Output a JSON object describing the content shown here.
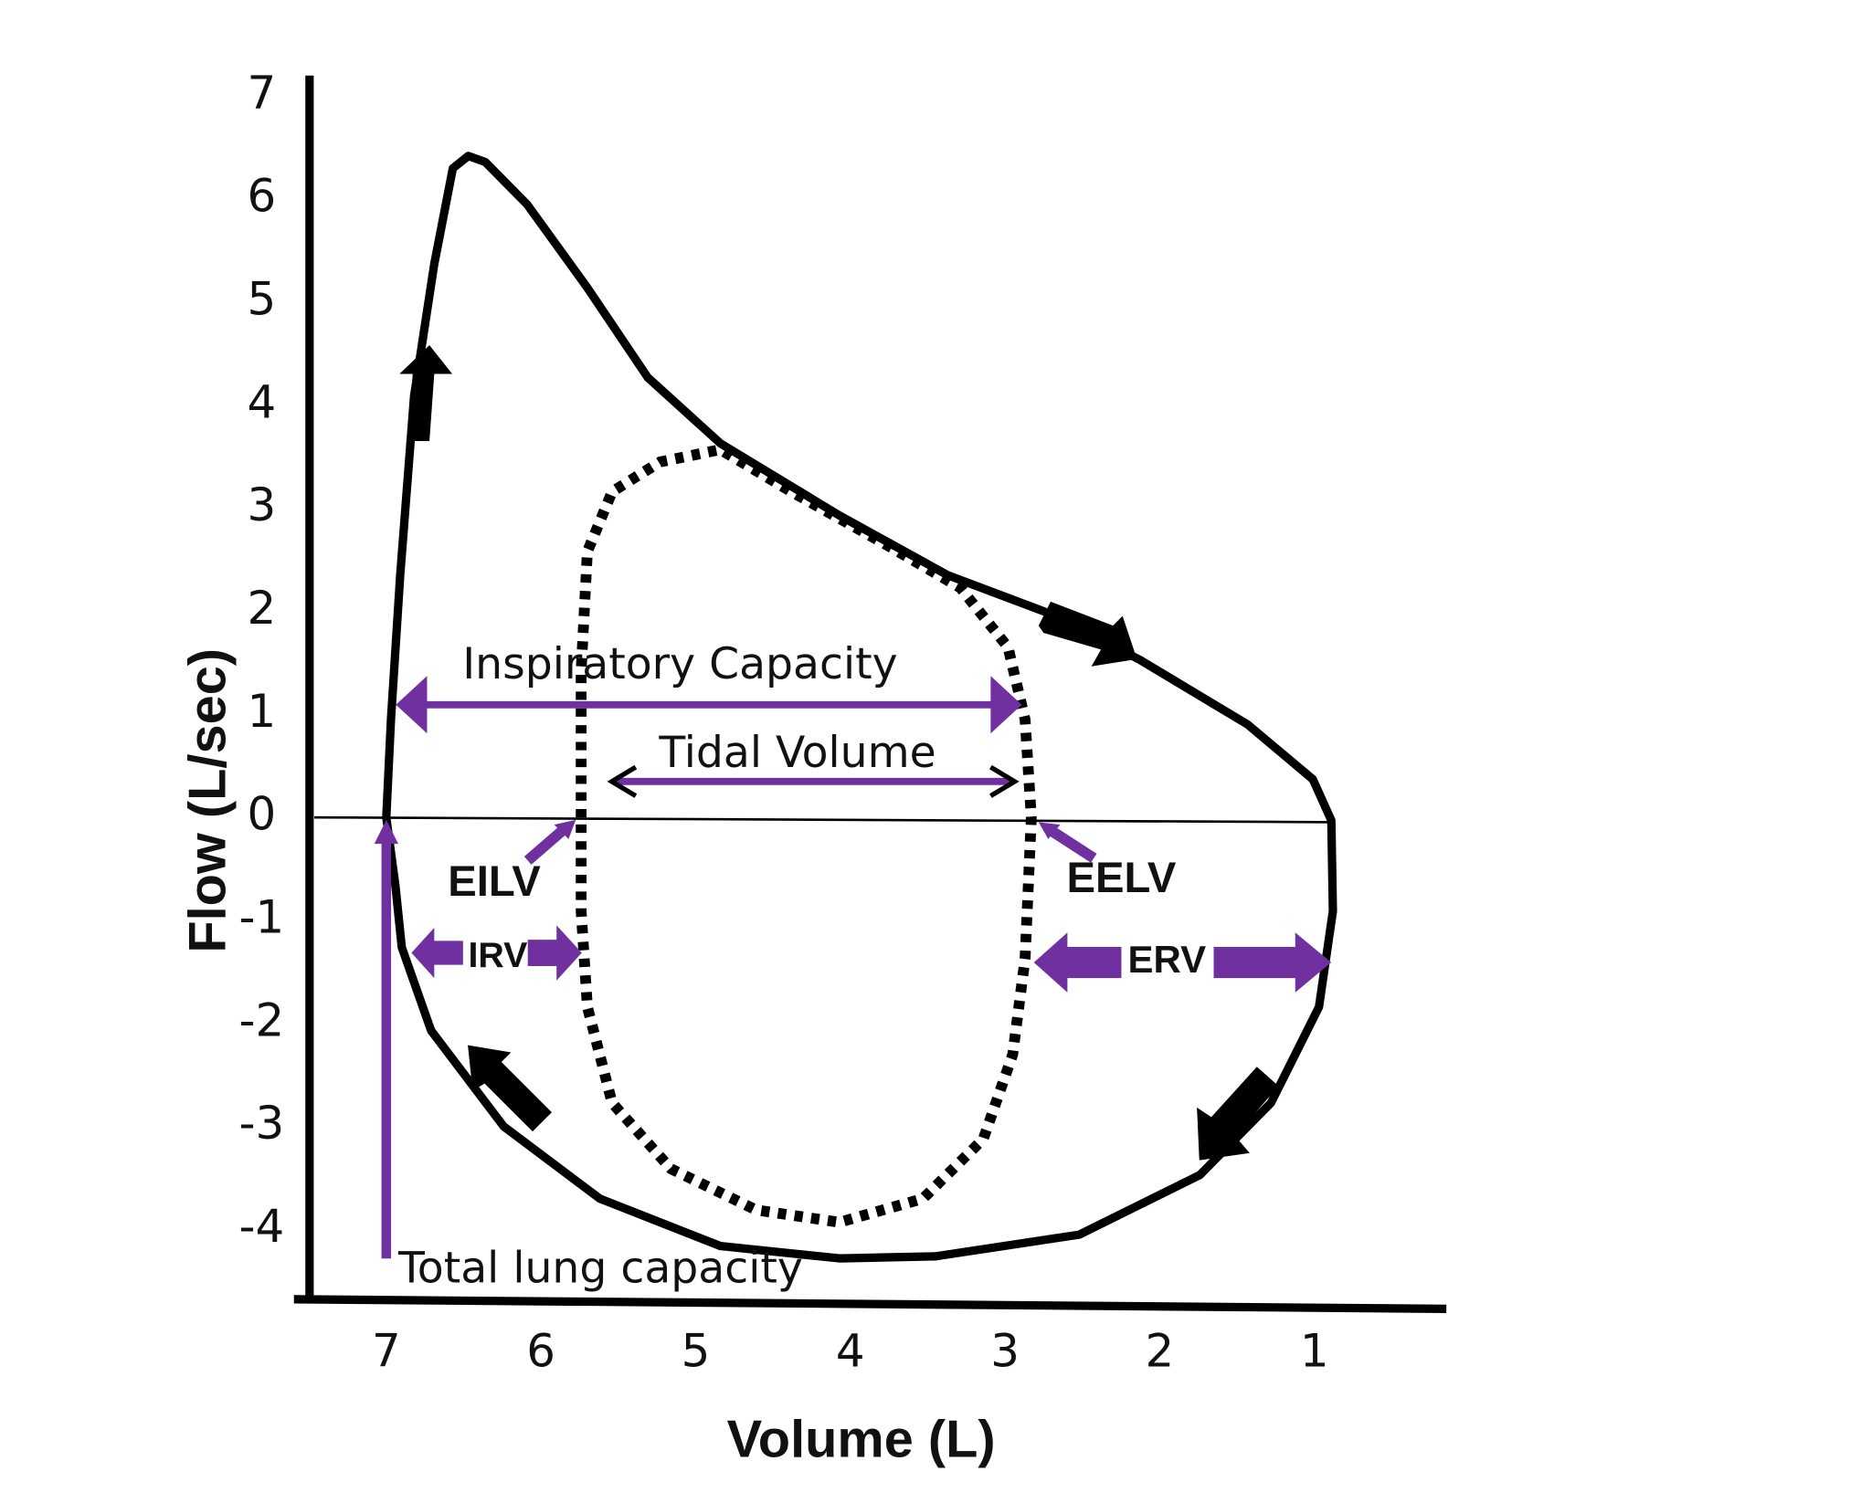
{
  "chart_data": {
    "type": "line",
    "x_label": "Volume (L)",
    "y_label": "Flow (L/sec)",
    "xlim": [
      7.5,
      0.15
    ],
    "ylim": [
      -4.7,
      7.2
    ],
    "xticks": [
      7,
      6,
      5,
      4,
      3,
      2,
      1
    ],
    "yticks": [
      7,
      6,
      5,
      4,
      3,
      2,
      1,
      0,
      -1,
      -2,
      -3,
      -4
    ],
    "series": [
      {
        "color": "#000000",
        "style": "solid",
        "x": [
          7,
          6.97,
          6.91,
          6.82,
          6.69,
          6.57,
          6.47,
          6.36,
          6.09,
          5.7,
          5.31,
          4.84,
          4.07,
          3.37,
          2.75,
          2.13,
          1.43,
          1.01,
          0.89,
          0.88,
          0.97,
          1.28,
          1.74,
          2.52,
          3.45,
          4.07,
          4.84,
          5.62,
          6.24,
          6.71,
          6.9,
          6.94,
          7
        ],
        "values": [
          0,
          0.95,
          2.35,
          4.09,
          5.37,
          6.3,
          6.42,
          6.36,
          5.95,
          5.14,
          4.27,
          3.63,
          2.93,
          2.35,
          2.0,
          1.53,
          0.9,
          0.37,
          -0.03,
          -0.91,
          -1.84,
          -2.77,
          -3.47,
          -4.05,
          -4.26,
          -4.28,
          -4.16,
          -3.7,
          -3.0,
          -2.07,
          -1.26,
          -0.67,
          0
        ]
      },
      {
        "color": "#000000",
        "style": "dotted",
        "x": [
          5.74,
          5.74,
          5.7,
          5.54,
          5.23,
          4.84,
          4.38,
          3.76,
          3.29,
          2.98,
          2.87,
          2.83,
          2.87,
          2.95,
          3.14,
          3.53,
          4.07,
          4.61,
          5.16,
          5.54,
          5.7,
          5.74,
          5.74
        ],
        "values": [
          0,
          1.42,
          2.58,
          3.16,
          3.45,
          3.57,
          3.16,
          2.64,
          2.23,
          1.65,
          0.95,
          0,
          -1.37,
          -2.3,
          -3.12,
          -3.7,
          -3.93,
          -3.81,
          -3.41,
          -2.77,
          -1.84,
          -0.91,
          0
        ]
      }
    ],
    "annotations": [
      "Inspiratory Capacity",
      "Tidal Volume",
      "EILV",
      "EELV",
      "IRV",
      "ERV",
      "Total lung capacity"
    ]
  }
}
